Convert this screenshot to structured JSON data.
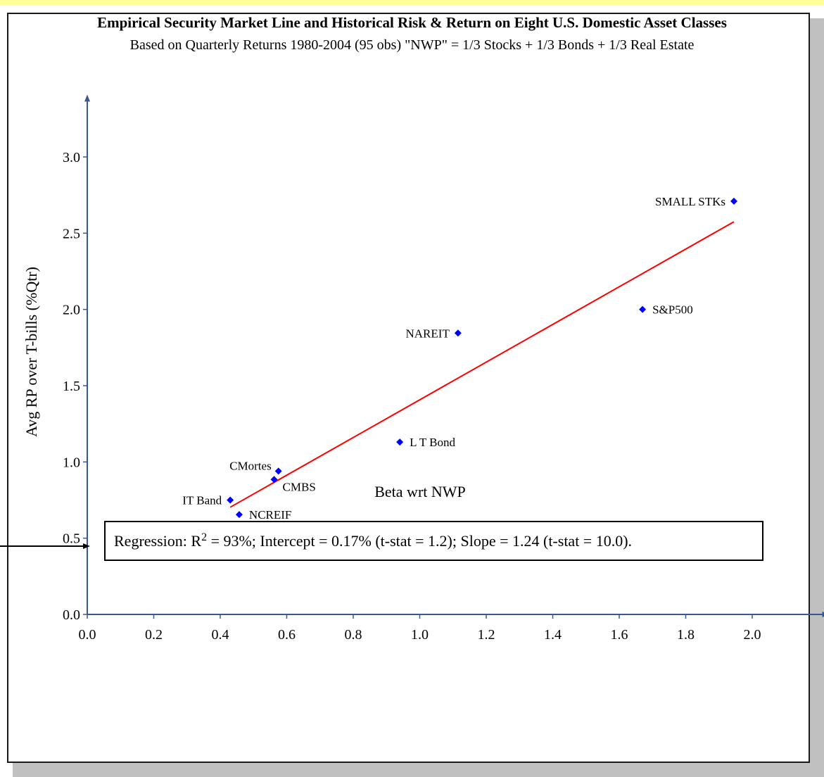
{
  "chart_data": {
    "type": "scatter",
    "title": "Empirical Security Market Line and Historical Risk & Return on Eight U.S. Domestic Asset Classes",
    "subtitle": "Based on Quarterly Returns 1980-2004 (95 obs) \"NWP\" = 1/3 Stocks + 1/3 Bonds + 1/3 Real Estate",
    "xlabel": "Beta wrt NWP",
    "ylabel": "Avg RP over T-bills (%Qtr)",
    "xlim": [
      0,
      2.2
    ],
    "ylim": [
      0,
      3.4
    ],
    "x_ticks": [
      "0.0",
      "0.2",
      "0.4",
      "0.6",
      "0.8",
      "1.0",
      "1.2",
      "1.4",
      "1.6",
      "1.8",
      "2.0"
    ],
    "y_ticks": [
      "0.0",
      "0.5",
      "1.0",
      "1.5",
      "2.0",
      "2.5",
      "3.0"
    ],
    "marker_color": "#0000ff",
    "line_color": "#ff0000",
    "axis_color": "#3a5795",
    "grid": false,
    "points": [
      {
        "label": "SMALL STKs",
        "x": 1.945,
        "y": 2.71,
        "label_side": "left"
      },
      {
        "label": "S&P500",
        "x": 1.67,
        "y": 2.0,
        "label_side": "right"
      },
      {
        "label": "NAREIT",
        "x": 1.115,
        "y": 1.845,
        "label_side": "left"
      },
      {
        "label": "L T Bond",
        "x": 0.94,
        "y": 1.13,
        "label_side": "right"
      },
      {
        "label": "CMortes",
        "x": 0.575,
        "y": 0.94,
        "label_side": "left-up"
      },
      {
        "label": "CMBS",
        "x": 0.562,
        "y": 0.885,
        "label_side": "right-down"
      },
      {
        "label": "IT Band",
        "x": 0.43,
        "y": 0.75,
        "label_side": "left"
      },
      {
        "label": "NCREIF",
        "x": 0.457,
        "y": 0.655,
        "label_side": "right"
      }
    ],
    "regression_line": {
      "x": [
        0.43,
        1.945
      ],
      "y": [
        0.703,
        2.575
      ]
    },
    "regression": {
      "prefix": "Regression: R",
      "superscript": "2",
      "suffix": " = 93%; Intercept = 0.17% (t-stat = 1.2); Slope = 1.24 (t-stat = 10.0)."
    }
  }
}
